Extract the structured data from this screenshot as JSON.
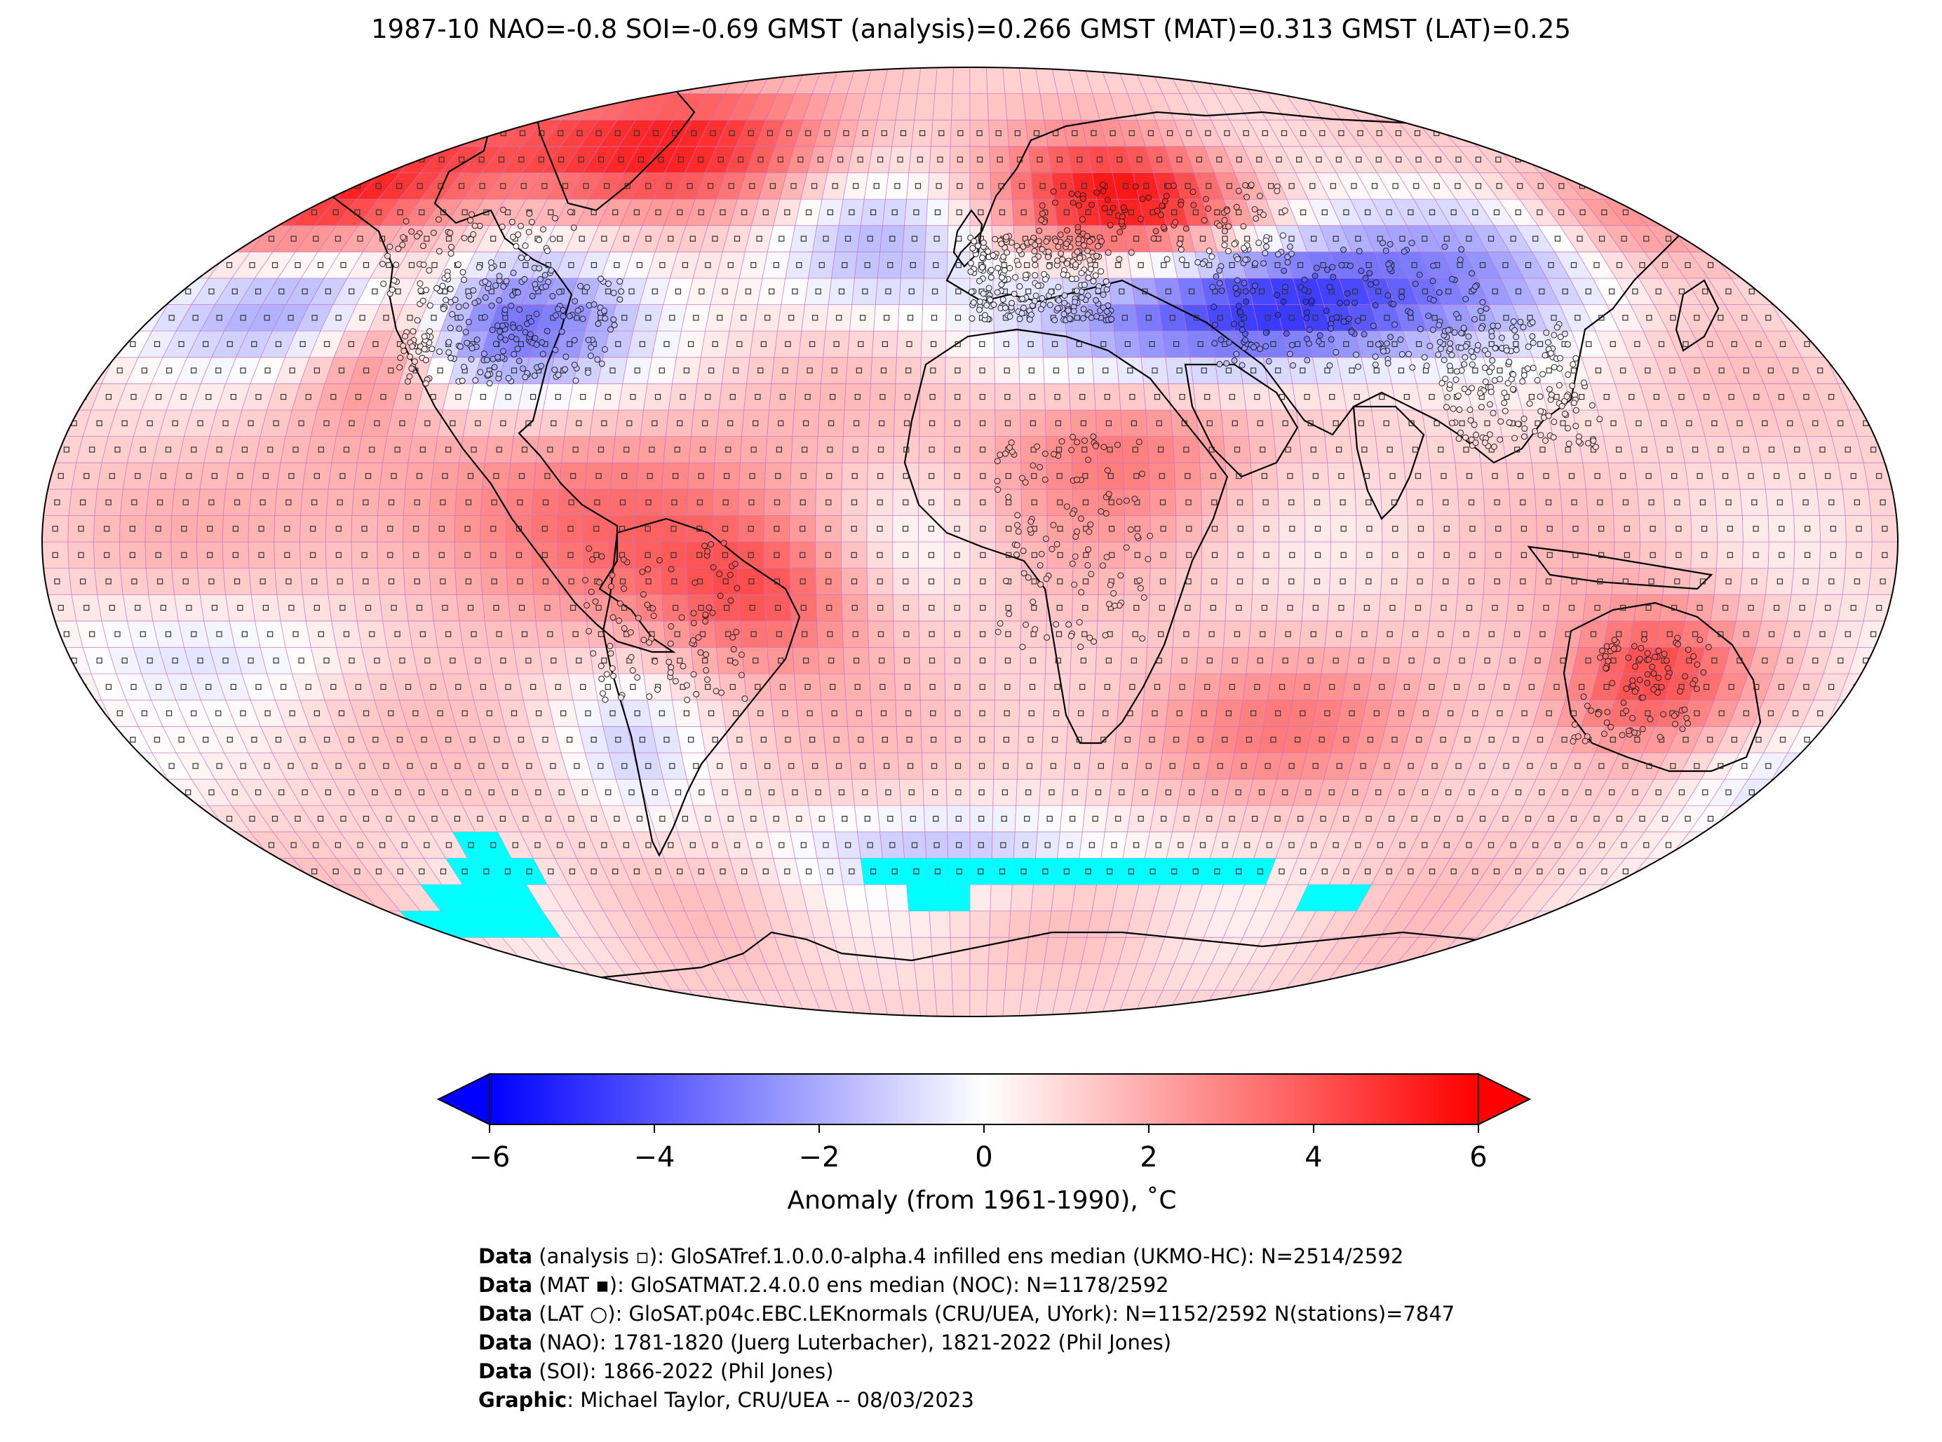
{
  "title": "1987-10 NAO=-0.8 SOI=-0.69 GMST (analysis)=0.266 GMST (MAT)=0.313 GMST (LAT)=0.25",
  "colors": {
    "cold_extreme": "#0000ff",
    "neutral": "#ffffff",
    "warm_extreme": "#ff0000",
    "sea_ice_mask": "#00ffff",
    "grid_lines": "#c070c0",
    "coastline": "#000000"
  },
  "map": {
    "projection": "robinson",
    "variable": "temperature anomaly",
    "markers": {
      "analysis": "small square",
      "MAT": "filled square",
      "LAT": "open circle"
    }
  },
  "colorbar": {
    "min": -6,
    "max": 6,
    "extend": "both",
    "ticks": [
      "−6",
      "−4",
      "−2",
      "0",
      "2",
      "4",
      "6"
    ],
    "tick_values": [
      -6,
      -4,
      -2,
      0,
      2,
      4,
      6
    ],
    "label": "Anomaly (from 1961-1990), ˚C"
  },
  "credits": [
    {
      "bold": "Data",
      "text": " (analysis ▫): GloSATref.1.0.0.0-alpha.4 infilled ens median (UKMO-HC): N=2514/2592"
    },
    {
      "bold": "Data",
      "text": " (MAT ▪): GloSATMAT.2.4.0.0 ens median (NOC): N=1178/2592"
    },
    {
      "bold": "Data",
      "text": " (LAT ○): GloSAT.p04c.EBC.LEKnormals (CRU/UEA, UYork): N=1152/2592 N(stations)=7847"
    },
    {
      "bold": "Data",
      "text": " (NAO): 1781-1820 (Juerg Luterbacher), 1821-2022 (Phil Jones)"
    },
    {
      "bold": "Data",
      "text": " (SOI): 1866-2022 (Phil Jones)"
    },
    {
      "bold": "Graphic",
      "text": ": Michael Taylor, CRU/UEA -- 08/03/2023"
    }
  ]
}
